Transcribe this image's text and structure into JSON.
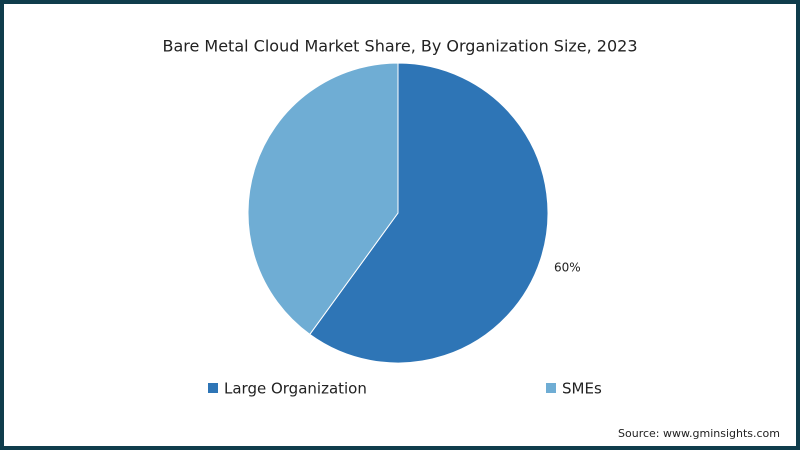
{
  "chart_data": {
    "type": "pie",
    "title": "Bare Metal Cloud Market Share, By Organization Size, 2023",
    "categories": [
      "Large Organization",
      "SMEs"
    ],
    "values": [
      60,
      40
    ],
    "value_labels": [
      "60%",
      null
    ],
    "colors": [
      "#2e75b6",
      "#6fadd4"
    ],
    "legend": "bottom",
    "source": "Source: www.gminsights.com"
  }
}
